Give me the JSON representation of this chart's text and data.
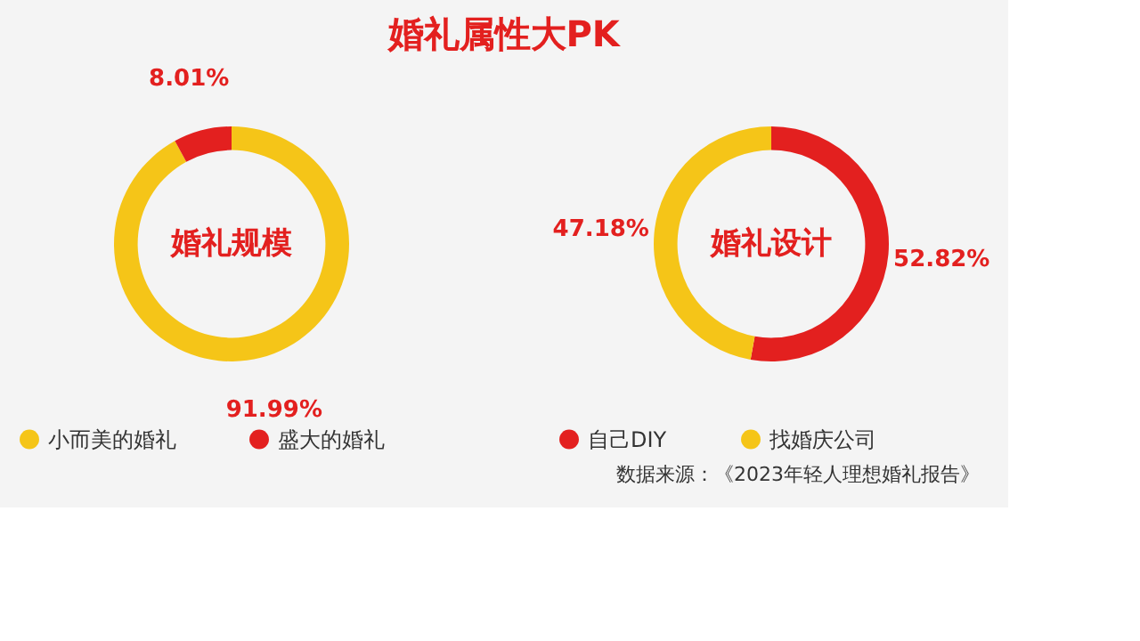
{
  "chart_data": [
    {
      "type": "other",
      "title": "婚礼属性大PK",
      "annotations": [
        "数据来源：《2023年轻人理想婚礼报告》"
      ]
    },
    {
      "type": "donut",
      "title": "婚礼规模",
      "categories": [
        "小而美的婚礼",
        "盛大的婚礼"
      ],
      "values": [
        91.99,
        8.01
      ],
      "colors": [
        "#f5c518",
        "#e3201f"
      ],
      "value_labels": [
        "91.99%",
        "8.01%"
      ],
      "legend": "bottom"
    },
    {
      "type": "donut",
      "title": "婚礼设计",
      "categories": [
        "自己DIY",
        "找婚庆公司"
      ],
      "values": [
        52.82,
        47.18
      ],
      "colors": [
        "#e3201f",
        "#f5c518"
      ],
      "value_labels": [
        "52.82%",
        "47.18%"
      ],
      "legend": "bottom"
    }
  ]
}
